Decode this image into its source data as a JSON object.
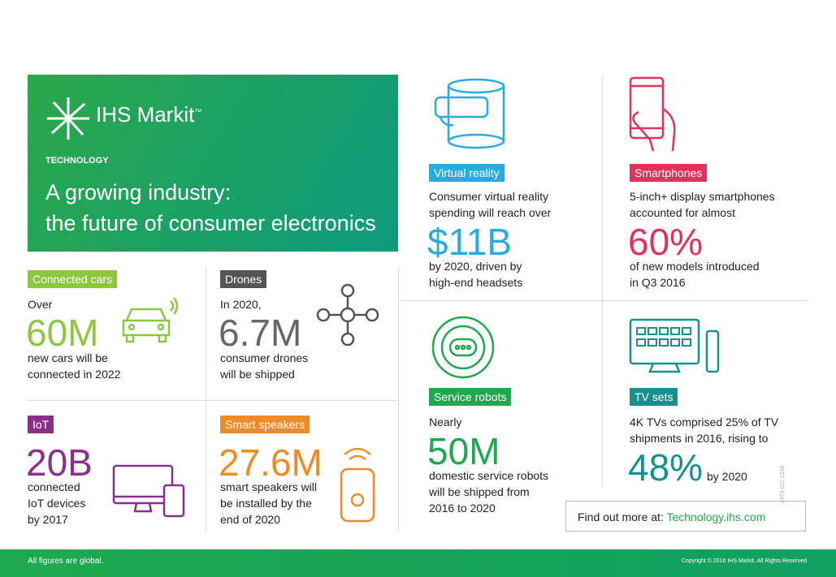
{
  "header": {
    "brand": "IHS Markit",
    "trademark": "™",
    "section": "TECHNOLOGY",
    "title_line1": "A growing industry:",
    "title_line2": "the future of consumer electronics"
  },
  "panels": [
    {
      "label": "Connected cars",
      "intro": "Over",
      "stat": "60M",
      "detail": [
        "new cars will be",
        "connected in 2022"
      ]
    },
    {
      "label": "Drones",
      "intro": "In 2020,",
      "stat": "6.7M",
      "detail": [
        "consumer drones",
        "will be shipped"
      ]
    },
    {
      "label": "IoT",
      "stat": "20B",
      "detail": [
        "connected",
        "IoT devices",
        "by 2017"
      ]
    },
    {
      "label": "Smart speakers",
      "stat": "27.6M",
      "detail": [
        "smart speakers will",
        "be installed by the",
        "end of 2020"
      ]
    },
    {
      "label": "Virtual reality",
      "intro": [
        "Consumer virtual reality",
        "spending will reach over"
      ],
      "stat": "$11B",
      "detail": [
        "by 2020, driven by",
        "high-end headsets"
      ]
    },
    {
      "label": "Smartphones",
      "intro": [
        "5-inch+ display smartphones",
        "accounted for almost"
      ],
      "stat": "60%",
      "detail": [
        "of new models introduced",
        "in Q3 2016"
      ]
    },
    {
      "label": "Service robots",
      "intro": "Nearly",
      "stat": "50M",
      "detail": [
        "domestic service robots",
        "will be shipped from",
        "2016 to 2020"
      ]
    },
    {
      "label": "TV sets",
      "intro": [
        "4K TVs comprised 25% of TV",
        "shipments in 2016, rising to"
      ],
      "stat": "48%",
      "detail": [
        "by 2020"
      ]
    }
  ],
  "link": {
    "prefix": "Find out more at:",
    "url": "Technology.ihs.com"
  },
  "code": "2873-GC-1216",
  "footer": {
    "note": "All figures are global.",
    "copyright": "Copyright © 2016 IHS Markit. All Rights Reserved"
  }
}
